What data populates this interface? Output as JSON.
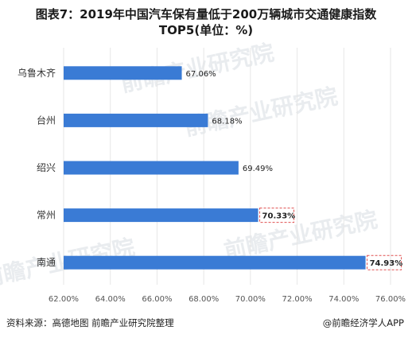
{
  "title_line1": "图表7：2019年中国汽车保有量低于200万辆城市交通健康指数",
  "title_line2": "TOP5(单位：%)",
  "footer": {
    "source": "资料来源：高德地图   前瞻产业研究院整理",
    "brand": "@前瞻经济学人APP"
  },
  "watermarks": [
    "前瞻产业研究院",
    "前瞻产业研究院",
    "前瞻产业研究院",
    "前瞻产业研究院"
  ],
  "colors": {
    "bar": "#3a7bd5",
    "highlight_border": "#e05050",
    "grid": "#e6e6e6"
  },
  "chart_data": {
    "type": "bar",
    "orientation": "horizontal",
    "categories": [
      "乌鲁木齐",
      "台州",
      "绍兴",
      "常州",
      "南通"
    ],
    "values": [
      67.06,
      68.18,
      69.49,
      70.33,
      74.93
    ],
    "data_labels": [
      "67.06%",
      "68.18%",
      "69.49%",
      "70.33%",
      "74.93%"
    ],
    "highlighted": [
      false,
      false,
      false,
      true,
      true
    ],
    "xlim": [
      62,
      76
    ],
    "xticks": [
      62,
      64,
      66,
      68,
      70,
      72,
      74,
      76
    ],
    "xtick_labels": [
      "62.00%",
      "64.00%",
      "66.00%",
      "68.00%",
      "70.00%",
      "72.00%",
      "74.00%",
      "76.00%"
    ],
    "grid": "vertical",
    "legend": "none"
  }
}
